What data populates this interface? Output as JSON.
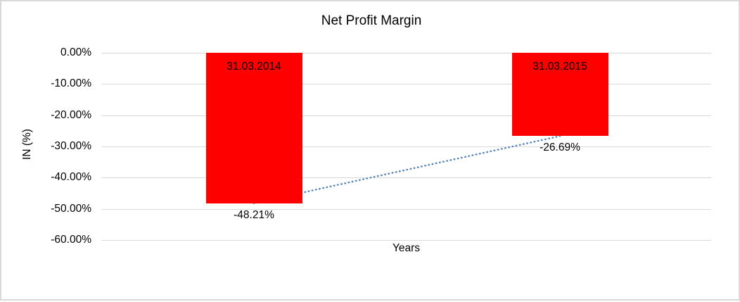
{
  "frame": {
    "background": "#ffffff",
    "border_color": "#d9d9d9"
  },
  "chart_data": {
    "type": "bar",
    "title": "Net Profit Margin",
    "categories": [
      "31.03.2014",
      "31.03.2015"
    ],
    "values": [
      -48.21,
      -26.69
    ],
    "value_labels": [
      "-48.21%",
      "-26.69%"
    ],
    "xlabel": "Years",
    "ylabel": "IN (%)",
    "ylim": [
      -60,
      0
    ],
    "ytick_step": 10,
    "ytick_labels": [
      "0.00%",
      "-10.00%",
      "-20.00%",
      "-30.00%",
      "-40.00%",
      "-50.00%",
      "-60.00%"
    ],
    "grid": true,
    "legend": false,
    "bar_color": "#ff0000",
    "gridline_color": "#d9d9d9",
    "text_color": "#000000",
    "trendline": {
      "type": "linear",
      "style": "dotted",
      "color": "#4f81bd",
      "start_value": -48.21,
      "end_value": -26.69
    }
  }
}
